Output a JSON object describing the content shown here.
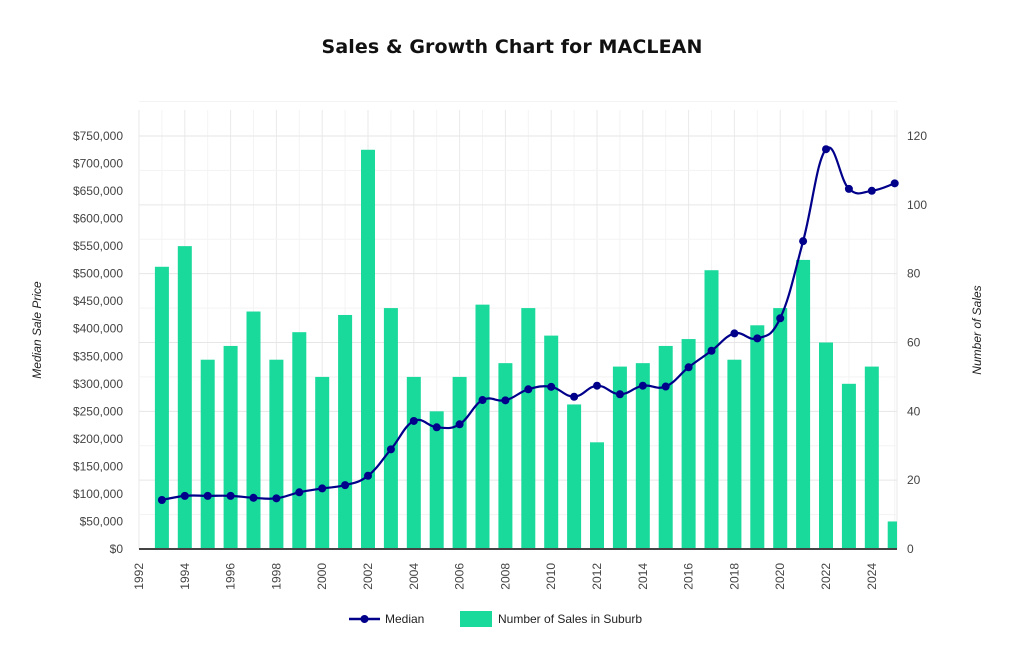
{
  "chart_data": {
    "type": "bar",
    "title": "Sales & Growth Chart for MACLEAN",
    "xlabel": "",
    "ylabel": "Median Sale Price",
    "y2label": "Number of Sales",
    "xlim": [
      1992,
      2025.1
    ],
    "ylim": [
      0,
      750000
    ],
    "y2lim": [
      0,
      120
    ],
    "grid": true,
    "legend_position": "bottom",
    "x_ticks": [
      "1992",
      "1994",
      "1996",
      "1998",
      "2000",
      "2002",
      "2004",
      "2006",
      "2008",
      "2010",
      "2012",
      "2014",
      "2016",
      "2018",
      "2020",
      "2022",
      "2024"
    ],
    "y_ticks": [
      "$0",
      "$50,000",
      "$100,000",
      "$150,000",
      "$200,000",
      "$250,000",
      "$300,000",
      "$350,000",
      "$400,000",
      "$450,000",
      "$500,000",
      "$550,000",
      "$600,000",
      "$650,000",
      "$700,000",
      "$750,000"
    ],
    "y2_ticks": [
      "0",
      "20",
      "40",
      "60",
      "80",
      "100",
      "120"
    ],
    "categories": [
      1993,
      1994,
      1995,
      1996,
      1997,
      1998,
      1999,
      2000,
      2001,
      2002,
      2003,
      2004,
      2005,
      2006,
      2007,
      2008,
      2009,
      2010,
      2011,
      2012,
      2013,
      2014,
      2015,
      2016,
      2017,
      2018,
      2019,
      2020,
      2021,
      2022,
      2023,
      2024,
      2025
    ],
    "series": [
      {
        "name": "Median",
        "type": "line",
        "axis": "left",
        "color": "#00008B",
        "values": [
          89000,
          96500,
          96500,
          96500,
          93000,
          92000,
          103000,
          110000,
          116000,
          133000,
          181000,
          232500,
          221000,
          226500,
          270500,
          270000,
          290000,
          294500,
          276500,
          296500,
          281000,
          296500,
          295000,
          330000,
          360000,
          391500,
          382500,
          419000,
          559000,
          726000,
          654000,
          650500,
          664000
        ]
      },
      {
        "name": "Number of Sales in Suburb",
        "type": "bar",
        "axis": "right",
        "color": "#19D99B",
        "values": [
          82,
          88,
          55,
          59,
          69,
          55,
          63,
          50,
          68,
          116,
          70,
          50,
          40,
          50,
          71,
          54,
          70,
          62,
          42,
          31,
          53,
          54,
          59,
          61,
          81,
          55,
          65,
          70,
          84,
          60,
          48,
          53,
          8
        ]
      }
    ]
  }
}
